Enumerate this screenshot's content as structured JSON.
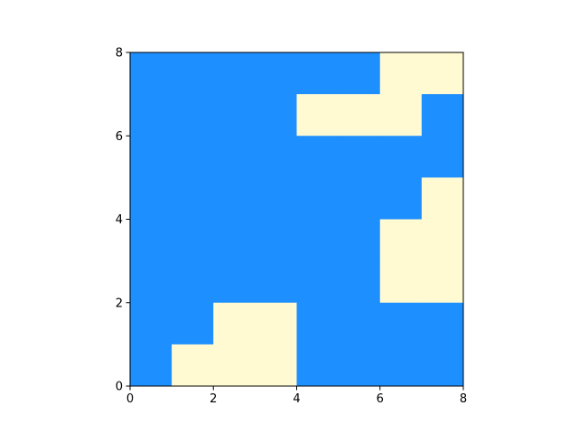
{
  "chart_data": {
    "type": "heatmap",
    "title": "",
    "xlabel": "",
    "ylabel": "",
    "xlim": [
      0,
      8
    ],
    "ylim": [
      0,
      8
    ],
    "grid": false,
    "x_ticks": [
      "0",
      "2",
      "4",
      "6",
      "8"
    ],
    "y_ticks": [
      "0",
      "2",
      "4",
      "6",
      "8"
    ],
    "colors": {
      "0": "#1e8ffe",
      "1": "#fffad2"
    },
    "rows_top_to_bottom": [
      [
        0,
        0,
        0,
        0,
        0,
        0,
        1,
        1
      ],
      [
        0,
        0,
        0,
        0,
        1,
        1,
        1,
        0
      ],
      [
        0,
        0,
        0,
        0,
        0,
        0,
        0,
        0
      ],
      [
        0,
        0,
        0,
        0,
        0,
        0,
        0,
        1
      ],
      [
        0,
        0,
        0,
        0,
        0,
        0,
        1,
        1
      ],
      [
        0,
        0,
        0,
        0,
        0,
        0,
        1,
        1
      ],
      [
        0,
        0,
        1,
        1,
        0,
        0,
        0,
        0
      ],
      [
        0,
        1,
        1,
        1,
        0,
        0,
        0,
        0
      ]
    ]
  }
}
